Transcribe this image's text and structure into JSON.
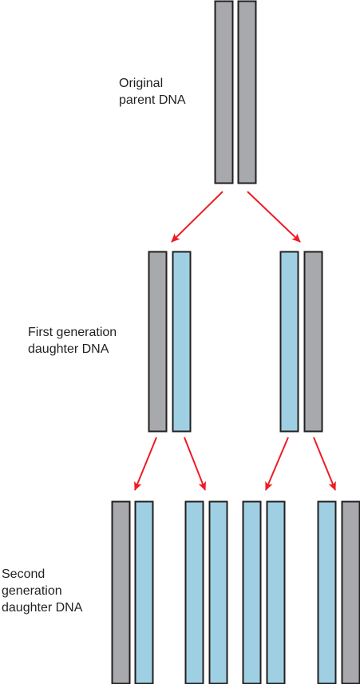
{
  "labels": {
    "parent": [
      "Original",
      "parent DNA"
    ],
    "first": [
      "First generation",
      "daughter DNA"
    ],
    "second": [
      "Second",
      "generation",
      "daughter DNA"
    ]
  },
  "colors": {
    "parental_strand": "#a7a9ac",
    "new_strand": "#9fcfe3",
    "outline": "#231f20",
    "arrow": "#ed1c24"
  },
  "generations": [
    {
      "name": "original-parent",
      "molecules": [
        [
          "parental",
          "parental"
        ]
      ]
    },
    {
      "name": "first-generation",
      "molecules": [
        [
          "parental",
          "new"
        ],
        [
          "new",
          "parental"
        ]
      ]
    },
    {
      "name": "second-generation",
      "molecules": [
        [
          "parental",
          "new"
        ],
        [
          "new",
          "new"
        ],
        [
          "new",
          "new"
        ],
        [
          "new",
          "parental"
        ]
      ]
    }
  ]
}
